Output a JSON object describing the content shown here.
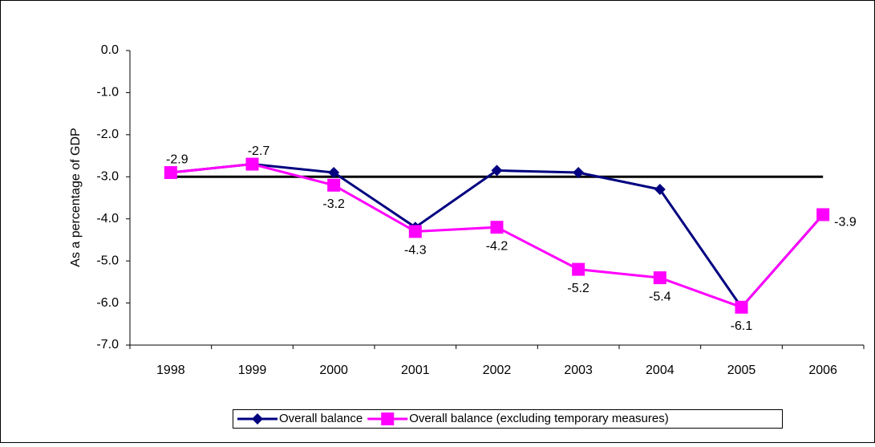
{
  "chart_data": {
    "type": "line",
    "y_label": "As a percentage of GDP",
    "categories": [
      "1998",
      "1999",
      "2000",
      "2001",
      "2002",
      "2003",
      "2004",
      "2005",
      "2006"
    ],
    "series": [
      {
        "name": "Overall balance",
        "color": "#000080",
        "marker": "diamond",
        "values": [
          -2.9,
          -2.7,
          -2.9,
          -4.2,
          -2.85,
          -2.9,
          -3.3,
          -6.1,
          -3.9
        ]
      },
      {
        "name": "Overall balance (excluding temporary measures)",
        "color": "#ff00ff",
        "marker": "square",
        "values": [
          -2.9,
          -2.7,
          -3.2,
          -4.3,
          -4.2,
          -5.2,
          -5.4,
          -6.1,
          -3.9
        ],
        "show_labels": true
      }
    ],
    "reference_line": {
      "value": -3.0,
      "color": "#000000"
    },
    "ylim": [
      -7.0,
      0.0
    ],
    "yticks": [
      {
        "value": 0,
        "label": "0.0"
      },
      {
        "value": -1,
        "label": "-1.0"
      },
      {
        "value": -2,
        "label": "-2.0"
      },
      {
        "value": -3,
        "label": "-3.0"
      },
      {
        "value": -4,
        "label": "-4.0"
      },
      {
        "value": -5,
        "label": "-5.0"
      },
      {
        "value": -6,
        "label": "-6.0"
      },
      {
        "value": -7,
        "label": "-7.0"
      }
    ],
    "legend": "bottom"
  }
}
